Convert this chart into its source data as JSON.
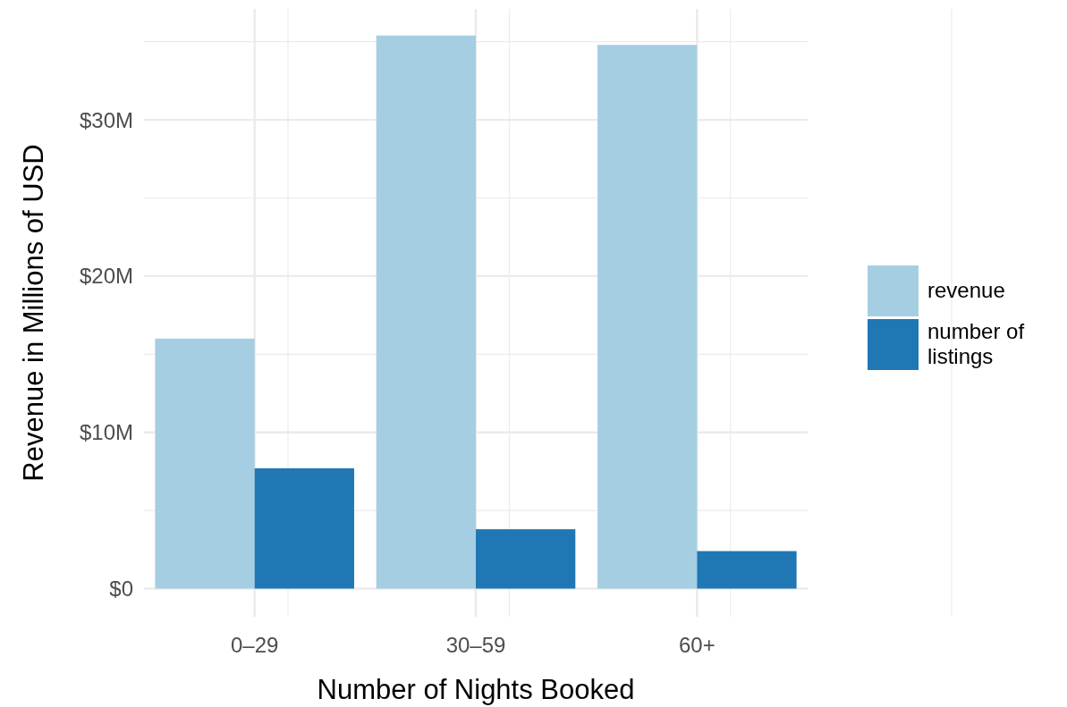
{
  "chart_data": {
    "type": "bar",
    "xlabel": "Number of Nights Booked",
    "ylabel": "Revenue in Millions of USD",
    "categories": [
      "0–29",
      "30–59",
      "60+"
    ],
    "series": [
      {
        "name": "revenue",
        "color": "#a6cee3",
        "values": [
          16.0,
          35.4,
          34.8
        ]
      },
      {
        "name": "number of listings",
        "color": "#1f78b4",
        "values": [
          7.7,
          3.8,
          2.4
        ]
      }
    ],
    "ylim": [
      -1.8,
      37.1
    ],
    "yticks": [
      {
        "value": 0,
        "label": "$0"
      },
      {
        "value": 5,
        "label": null
      },
      {
        "value": 10,
        "label": "$10M"
      },
      {
        "value": 15,
        "label": null
      },
      {
        "value": 20,
        "label": "$20M"
      },
      {
        "value": 25,
        "label": null
      },
      {
        "value": 30,
        "label": "$30M"
      },
      {
        "value": 35,
        "label": null
      }
    ],
    "grid": true,
    "legend": "right"
  }
}
